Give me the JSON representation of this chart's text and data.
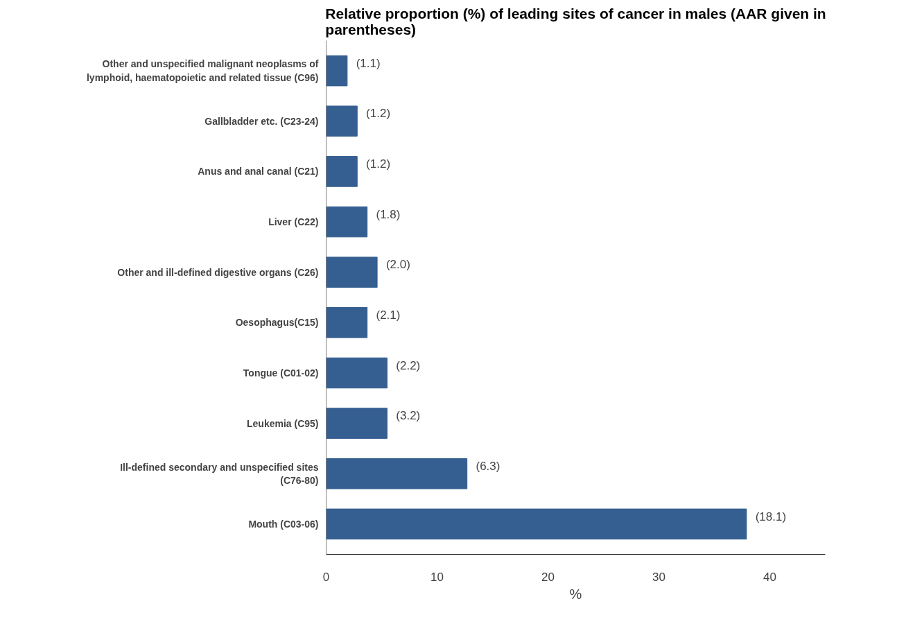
{
  "chart_data": {
    "type": "bar",
    "orientation": "horizontal",
    "title": "Relative proportion (%) of leading sites of cancer in males (AAR given in parentheses)",
    "xlabel": "%",
    "categories": [
      "Other and unspecified malignant neoplasms of lymphoid, haematopoietic and related tissue (C96)",
      "Gallbladder etc. (C23-24)",
      "Anus and anal canal (C21)",
      "Liver (C22)",
      "Other and ill-defined digestive organs (C26)",
      "Oesophagus(C15)",
      "Tongue (C01-02)",
      "Leukemia (C95)",
      "Ill-defined secondary and unspecified sites (C76-80)",
      "Mouth (C03-06)"
    ],
    "values": [
      1.9,
      2.8,
      2.8,
      3.7,
      4.6,
      3.7,
      5.5,
      5.5,
      12.7,
      37.9
    ],
    "annotations": [
      {
        "text": "(1.1)",
        "x": 1.9,
        "y": "Other and unspecified malignant neoplasms of lymphoid, haematopoietic and related tissue (C96)"
      },
      {
        "text": "(1.2)",
        "x": 2.8,
        "y": "Gallbladder etc. (C23-24)"
      },
      {
        "text": "(1.2)",
        "x": 2.8,
        "y": "Anus and anal canal (C21)"
      },
      {
        "text": "(1.8)",
        "x": 3.7,
        "y": "Liver (C22)"
      },
      {
        "text": "(2.0)",
        "x": 4.6,
        "y": "Other and ill-defined digestive organs (C26)"
      },
      {
        "text": "(2.1)",
        "x": 3.7,
        "y": "Oesophagus(C15)"
      },
      {
        "text": "(2.2)",
        "x": 5.5,
        "y": "Tongue (C01-02)"
      },
      {
        "text": "(3.2)",
        "x": 5.5,
        "y": "Leukemia (C95)"
      },
      {
        "text": "(6.3)",
        "x": 12.7,
        "y": "Ill-defined secondary and unspecified sites (C76-80)"
      },
      {
        "text": "(18.1)",
        "x": 37.9,
        "y": "Mouth (C03-06)"
      }
    ],
    "color": "#365f91",
    "xlim": [
      0,
      45
    ],
    "xticks": [
      0,
      10,
      20,
      30,
      40
    ],
    "grid": false
  }
}
